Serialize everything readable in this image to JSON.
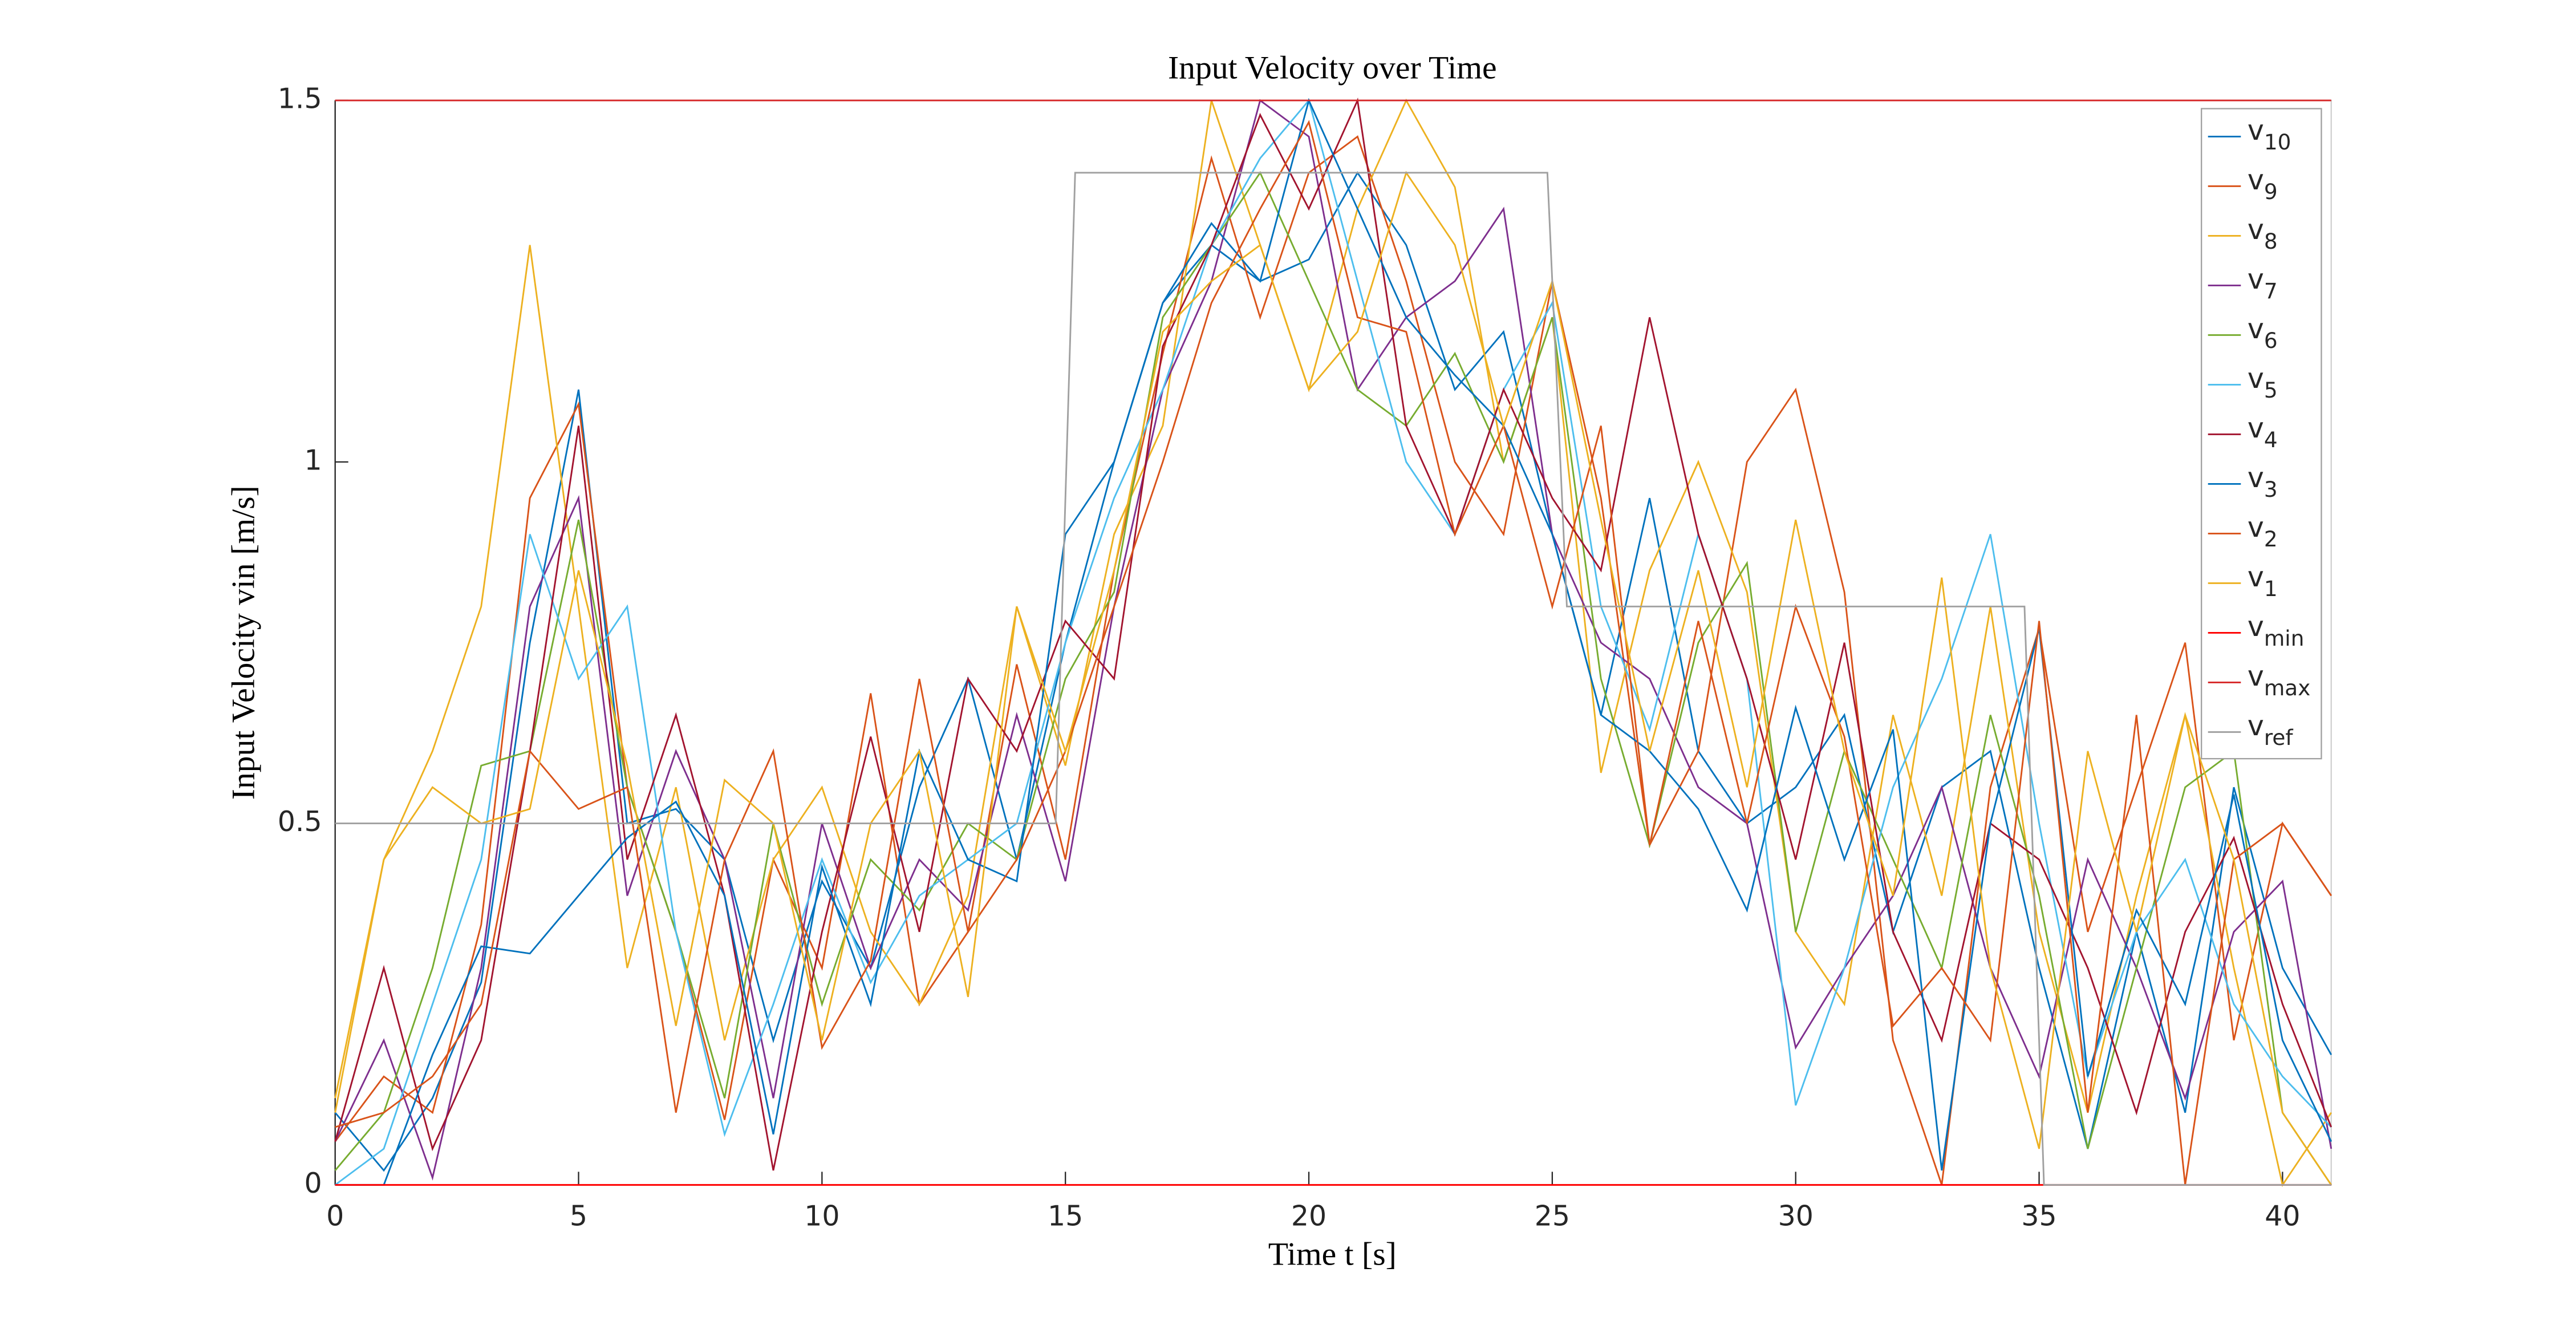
{
  "chart_data": {
    "type": "line",
    "title": "Input Velocity over Time",
    "xlabel": "Time t [s]",
    "ylabel": "Input Velocity vin [m/s]",
    "xlim": [
      0,
      41
    ],
    "xticks": [
      0,
      5,
      10,
      15,
      20,
      25,
      30,
      35,
      40
    ],
    "ylim": [
      0,
      1.5
    ],
    "yticks": [
      0,
      0.5,
      1,
      1.5
    ],
    "legend": "upper right",
    "grid": false,
    "x": [
      0,
      1,
      2,
      3,
      4,
      5,
      6,
      7,
      8,
      9,
      10,
      11,
      12,
      13,
      14,
      15,
      16,
      17,
      18,
      19,
      20,
      21,
      22,
      23,
      24,
      25,
      26,
      27,
      28,
      29,
      30,
      31,
      32,
      33,
      34,
      35,
      36,
      37,
      38,
      39,
      40,
      41
    ],
    "series": [
      {
        "name": "v10",
        "color": "#0072bd",
        "values": [
          0.1,
          0.02,
          0.12,
          0.28,
          0.75,
          1.1,
          0.5,
          0.52,
          0.45,
          0.2,
          0.42,
          0.3,
          0.55,
          0.7,
          0.45,
          0.75,
          1.0,
          1.22,
          1.3,
          1.25,
          1.28,
          1.4,
          1.3,
          1.1,
          1.18,
          0.9,
          0.65,
          0.95,
          0.6,
          0.5,
          0.55,
          0.65,
          0.35,
          0.55,
          0.6,
          0.3,
          0.05,
          0.35,
          0.1,
          0.55,
          0.3,
          0.18
        ]
      },
      {
        "name": "v9",
        "color": "#d95319",
        "values": [
          0.06,
          0.15,
          0.1,
          0.36,
          0.95,
          1.08,
          0.55,
          0.35,
          0.09,
          0.45,
          0.3,
          0.68,
          0.25,
          0.35,
          0.72,
          0.45,
          0.85,
          1.15,
          1.42,
          1.2,
          1.4,
          1.45,
          1.25,
          1.0,
          0.9,
          1.25,
          0.95,
          0.47,
          0.6,
          1.0,
          1.1,
          0.82,
          0.2,
          0.0,
          0.55,
          0.77,
          0.35,
          0.55,
          0.75,
          0.2,
          0.5,
          0.4
        ]
      },
      {
        "name": "v8",
        "color": "#edb120",
        "values": [
          0.12,
          0.45,
          0.6,
          0.8,
          1.3,
          0.8,
          0.3,
          0.55,
          0.2,
          0.45,
          0.55,
          0.35,
          0.25,
          0.4,
          0.8,
          0.58,
          0.9,
          1.05,
          1.5,
          1.3,
          1.1,
          1.35,
          1.5,
          1.38,
          1.0,
          1.2,
          0.57,
          0.85,
          1.0,
          0.82,
          0.35,
          0.25,
          0.65,
          0.4,
          0.8,
          0.35,
          0.1,
          0.4,
          0.65,
          0.3,
          0.0,
          0.1
        ]
      },
      {
        "name": "v7",
        "color": "#7e2f8e",
        "values": [
          0.06,
          0.2,
          0.01,
          0.3,
          0.8,
          0.95,
          0.4,
          0.6,
          0.45,
          0.12,
          0.5,
          0.3,
          0.45,
          0.38,
          0.65,
          0.42,
          0.8,
          1.1,
          1.25,
          1.5,
          1.45,
          1.1,
          1.2,
          1.25,
          1.35,
          0.9,
          0.75,
          0.7,
          0.55,
          0.5,
          0.19,
          0.3,
          0.4,
          0.55,
          0.3,
          0.15,
          0.45,
          0.3,
          0.12,
          0.35,
          0.42,
          0.05
        ]
      },
      {
        "name": "v6",
        "color": "#77ac30",
        "values": [
          0.02,
          0.1,
          0.3,
          0.58,
          0.6,
          0.92,
          0.55,
          0.35,
          0.12,
          0.5,
          0.25,
          0.45,
          0.38,
          0.5,
          0.45,
          0.7,
          0.82,
          1.2,
          1.3,
          1.4,
          1.25,
          1.1,
          1.05,
          1.15,
          1.0,
          1.2,
          0.7,
          0.47,
          0.75,
          0.86,
          0.35,
          0.6,
          0.45,
          0.3,
          0.65,
          0.4,
          0.05,
          0.3,
          0.55,
          0.6,
          0.1,
          0.0
        ]
      },
      {
        "name": "v5",
        "color": "#4dbeee",
        "values": [
          0.0,
          0.05,
          0.25,
          0.45,
          0.9,
          0.7,
          0.8,
          0.35,
          0.07,
          0.25,
          0.45,
          0.28,
          0.4,
          0.45,
          0.5,
          0.75,
          0.95,
          1.1,
          1.3,
          1.42,
          1.5,
          1.25,
          1.0,
          0.9,
          1.1,
          1.22,
          0.8,
          0.63,
          0.9,
          0.7,
          0.11,
          0.3,
          0.55,
          0.7,
          0.9,
          0.5,
          0.15,
          0.35,
          0.45,
          0.25,
          0.15,
          0.08
        ]
      },
      {
        "name": "v4",
        "color": "#a2142f",
        "values": [
          0.06,
          0.3,
          0.05,
          0.2,
          0.6,
          1.05,
          0.45,
          0.65,
          0.4,
          0.02,
          0.35,
          0.62,
          0.35,
          0.7,
          0.6,
          0.78,
          0.7,
          1.16,
          1.3,
          1.48,
          1.35,
          1.5,
          1.05,
          0.9,
          1.1,
          0.95,
          0.85,
          1.2,
          0.9,
          0.7,
          0.45,
          0.75,
          0.35,
          0.2,
          0.5,
          0.45,
          0.3,
          0.1,
          0.35,
          0.48,
          0.25,
          0.08
        ]
      },
      {
        "name": "v3",
        "color": "#0072bd",
        "values": [
          0.0,
          0.0,
          0.18,
          0.33,
          0.32,
          0.4,
          0.48,
          0.53,
          0.4,
          0.07,
          0.44,
          0.25,
          0.6,
          0.45,
          0.42,
          0.9,
          1.0,
          1.22,
          1.33,
          1.25,
          1.5,
          1.35,
          1.2,
          1.12,
          1.05,
          0.9,
          0.65,
          0.6,
          0.52,
          0.38,
          0.66,
          0.45,
          0.63,
          0.02,
          0.5,
          0.77,
          0.15,
          0.38,
          0.25,
          0.54,
          0.2,
          0.06
        ]
      },
      {
        "name": "v2",
        "color": "#d95319",
        "values": [
          0.08,
          0.1,
          0.15,
          0.25,
          0.6,
          0.52,
          0.55,
          0.1,
          0.45,
          0.6,
          0.19,
          0.31,
          0.7,
          0.35,
          0.45,
          0.6,
          0.8,
          1.0,
          1.22,
          1.35,
          1.47,
          1.2,
          1.18,
          0.9,
          1.05,
          0.8,
          1.05,
          0.47,
          0.78,
          0.5,
          0.8,
          0.62,
          0.22,
          0.3,
          0.2,
          0.78,
          0.1,
          0.65,
          0.0,
          0.45,
          0.5,
          0.4
        ]
      },
      {
        "name": "v1",
        "color": "#edb120",
        "values": [
          0.1,
          0.45,
          0.55,
          0.5,
          0.52,
          0.85,
          0.58,
          0.22,
          0.56,
          0.5,
          0.2,
          0.5,
          0.6,
          0.26,
          0.8,
          0.6,
          0.85,
          1.18,
          1.25,
          1.3,
          1.1,
          1.18,
          1.4,
          1.3,
          1.05,
          1.25,
          0.92,
          0.6,
          0.85,
          0.55,
          0.92,
          0.6,
          0.4,
          0.84,
          0.3,
          0.05,
          0.6,
          0.35,
          0.65,
          0.45,
          0.1,
          0.0
        ]
      },
      {
        "name": "vmin",
        "color": "#ff0000",
        "x": [
          0,
          41
        ],
        "values": [
          0,
          0
        ]
      },
      {
        "name": "vmax",
        "color": "#d62728",
        "x": [
          0,
          41
        ],
        "values": [
          1.5,
          1.5
        ]
      },
      {
        "name": "vref",
        "color": "#a0a0a0",
        "x": [
          0,
          14.8,
          15.2,
          24.9,
          25.3,
          34.7,
          35.1,
          41
        ],
        "values": [
          0.5,
          0.5,
          1.4,
          1.4,
          0.8,
          0.8,
          0,
          0
        ]
      }
    ]
  }
}
